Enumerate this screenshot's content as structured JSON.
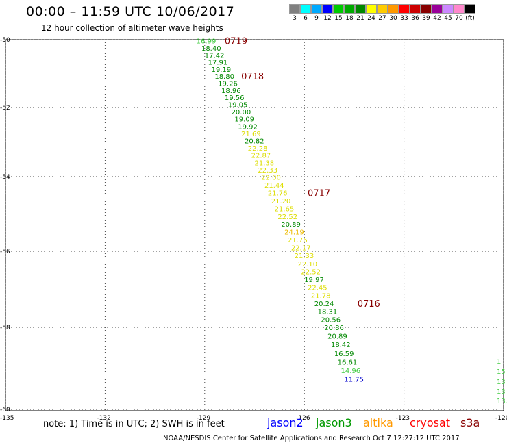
{
  "title": "00:00 – 11:59 UTC 10/06/2017",
  "subtitle": "12 hour collection of altimeter wave heights",
  "color_scale": {
    "colors": [
      "#808080",
      "#00ffff",
      "#00aaff",
      "#0000ff",
      "#00cc00",
      "#00aa00",
      "#008800",
      "#ffff00",
      "#ffcc00",
      "#ff9900",
      "#ff0000",
      "#cc0000",
      "#880000",
      "#990099",
      "#cc88ff",
      "#ff88cc",
      "#000000"
    ],
    "labels": [
      "3",
      "6",
      "9",
      "12",
      "15",
      "18",
      "21",
      "24",
      "27",
      "30",
      "33",
      "36",
      "39",
      "42",
      "45",
      "70",
      "(ft)"
    ]
  },
  "axes": {
    "x_ticks": [
      "-135",
      "-132",
      "-129",
      "-126",
      "-123",
      "-120"
    ],
    "y_ticks": [
      "-50",
      "-52",
      "-54",
      "-56",
      "-58",
      "-60"
    ]
  },
  "track_times": [
    "0719",
    "0718",
    "0717",
    "0716"
  ],
  "measurements": [
    {
      "lon": -129.25,
      "lat": -50.03,
      "value": "16.99",
      "sat": "jason3",
      "color": "#44cc44"
    },
    {
      "lon": -129.1,
      "lat": -50.24,
      "value": "18.40",
      "sat": "jason3",
      "color": "#008800"
    },
    {
      "lon": -129.0,
      "lat": -50.45,
      "value": "17.42",
      "sat": "jason3",
      "color": "#008800"
    },
    {
      "lon": -128.9,
      "lat": -50.66,
      "value": "17.91",
      "sat": "jason3",
      "color": "#008800"
    },
    {
      "lon": -128.8,
      "lat": -50.87,
      "value": "19.19",
      "sat": "jason3",
      "color": "#008800"
    },
    {
      "lon": -128.7,
      "lat": -51.07,
      "value": "18.80",
      "sat": "jason3",
      "color": "#008800"
    },
    {
      "lon": -128.6,
      "lat": -51.28,
      "value": "19.26",
      "sat": "jason3",
      "color": "#008800"
    },
    {
      "lon": -128.5,
      "lat": -51.49,
      "value": "18.96",
      "sat": "jason3",
      "color": "#008800"
    },
    {
      "lon": -128.4,
      "lat": -51.7,
      "value": "19.56",
      "sat": "jason3",
      "color": "#008800"
    },
    {
      "lon": -128.3,
      "lat": -51.91,
      "value": "19.05",
      "sat": "jason3",
      "color": "#008800"
    },
    {
      "lon": -128.2,
      "lat": -52.12,
      "value": "20.00",
      "sat": "jason3",
      "color": "#008800"
    },
    {
      "lon": -128.1,
      "lat": -52.33,
      "value": "19.09",
      "sat": "jason3",
      "color": "#008800"
    },
    {
      "lon": -128.0,
      "lat": -52.54,
      "value": "19.92",
      "sat": "jason3",
      "color": "#008800"
    },
    {
      "lon": -127.9,
      "lat": -52.75,
      "value": "21.69",
      "sat": "jason3",
      "color": "#dddd00"
    },
    {
      "lon": -127.8,
      "lat": -52.96,
      "value": "20.82",
      "sat": "jason3",
      "color": "#008800"
    },
    {
      "lon": -127.7,
      "lat": -53.17,
      "value": "22.28",
      "sat": "jason3",
      "color": "#dddd00"
    },
    {
      "lon": -127.6,
      "lat": -53.38,
      "value": "22.87",
      "sat": "jason3",
      "color": "#dddd00"
    },
    {
      "lon": -127.5,
      "lat": -53.59,
      "value": "21.38",
      "sat": "jason3",
      "color": "#dddd00"
    },
    {
      "lon": -127.4,
      "lat": -53.8,
      "value": "22.33",
      "sat": "jason3",
      "color": "#dddd00"
    },
    {
      "lon": -127.3,
      "lat": -54.01,
      "value": "22.00",
      "sat": "jason3",
      "color": "#dddd00"
    },
    {
      "lon": -127.2,
      "lat": -54.22,
      "value": "21.44",
      "sat": "jason3",
      "color": "#dddd00"
    },
    {
      "lon": -127.1,
      "lat": -54.43,
      "value": "21.76",
      "sat": "jason3",
      "color": "#dddd00"
    },
    {
      "lon": -127.0,
      "lat": -54.64,
      "value": "21.20",
      "sat": "jason3",
      "color": "#dddd00"
    },
    {
      "lon": -126.9,
      "lat": -54.85,
      "value": "21.65",
      "sat": "jason3",
      "color": "#dddd00"
    },
    {
      "lon": -126.8,
      "lat": -55.06,
      "value": "22.52",
      "sat": "jason3",
      "color": "#dddd00"
    },
    {
      "lon": -126.7,
      "lat": -55.27,
      "value": "20.89",
      "sat": "jason3",
      "color": "#008800"
    },
    {
      "lon": -126.6,
      "lat": -55.48,
      "value": "24.19",
      "sat": "jason3",
      "color": "#eebb00"
    },
    {
      "lon": -126.5,
      "lat": -55.69,
      "value": "21.76",
      "sat": "jason3",
      "color": "#dddd00"
    },
    {
      "lon": -126.4,
      "lat": -55.9,
      "value": "22.17",
      "sat": "jason3",
      "color": "#dddd00"
    },
    {
      "lon": -126.3,
      "lat": -56.11,
      "value": "21.33",
      "sat": "jason3",
      "color": "#dddd00"
    },
    {
      "lon": -126.2,
      "lat": -56.32,
      "value": "22.10",
      "sat": "jason3",
      "color": "#dddd00"
    },
    {
      "lon": -126.1,
      "lat": -56.53,
      "value": "22.52",
      "sat": "jason3",
      "color": "#dddd00"
    },
    {
      "lon": -126.0,
      "lat": -56.74,
      "value": "19.97",
      "sat": "jason3",
      "color": "#008800"
    },
    {
      "lon": -125.9,
      "lat": -56.95,
      "value": "22.45",
      "sat": "jason3",
      "color": "#dddd00"
    },
    {
      "lon": -125.8,
      "lat": -57.16,
      "value": "21.78",
      "sat": "jason3",
      "color": "#dddd00"
    },
    {
      "lon": -125.7,
      "lat": -57.37,
      "value": "20.24",
      "sat": "jason3",
      "color": "#008800"
    },
    {
      "lon": -125.6,
      "lat": -57.58,
      "value": "18.31",
      "sat": "jason3",
      "color": "#008800"
    },
    {
      "lon": -125.5,
      "lat": -57.79,
      "value": "20.56",
      "sat": "jason3",
      "color": "#008800"
    },
    {
      "lon": -125.4,
      "lat": -58.0,
      "value": "20.86",
      "sat": "jason3",
      "color": "#008800"
    },
    {
      "lon": -125.3,
      "lat": -58.21,
      "value": "20.89",
      "sat": "jason3",
      "color": "#008800"
    },
    {
      "lon": -125.2,
      "lat": -58.42,
      "value": "18.42",
      "sat": "jason3",
      "color": "#008800"
    },
    {
      "lon": -125.1,
      "lat": -58.63,
      "value": "16.59",
      "sat": "jason3",
      "color": "#008800"
    },
    {
      "lon": -125.0,
      "lat": -58.84,
      "value": "16.61",
      "sat": "jason3",
      "color": "#008800"
    },
    {
      "lon": -124.9,
      "lat": -59.05,
      "value": "14.96",
      "sat": "jason3",
      "color": "#44cc44"
    },
    {
      "lon": -124.8,
      "lat": -59.26,
      "value": "11.75",
      "sat": "jason3",
      "color": "#0000cc"
    }
  ],
  "edge_labels": [
    "1",
    "15",
    "13",
    "13",
    "13."
  ],
  "note": "note:  1) Time is in UTC;  2) SWH is in feet",
  "satellites": [
    {
      "name": "jason2",
      "color": "#0000ff"
    },
    {
      "name": "jason3",
      "color": "#009900"
    },
    {
      "name": "altika",
      "color": "#ff9900"
    },
    {
      "name": "cryosat",
      "color": "#ff0000"
    },
    {
      "name": "s3a",
      "color": "#880000"
    }
  ],
  "credit": "NOAA/NESDIS Center for Satellite Applications and Research    Oct  7 12:27:12 UTC 2017"
}
